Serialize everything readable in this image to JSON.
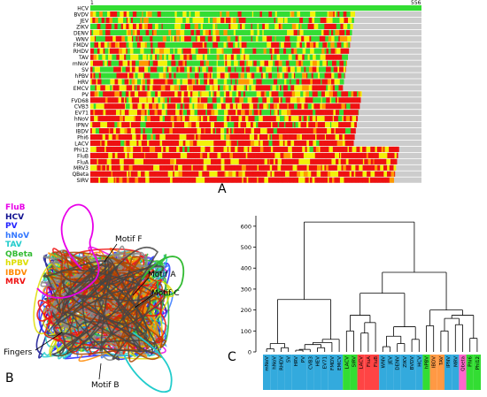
{
  "panelA": {
    "label": "A",
    "start_label": "1",
    "end_label": "556",
    "rows": [
      "HCV",
      "BVDV",
      "JEV",
      "ZIKV",
      "DENV",
      "WNV",
      "FMDV",
      "RHDV",
      "TAV",
      "mNoV",
      "SV",
      "hPBV",
      "HRV",
      "EMCV",
      "PV",
      "FVD68",
      "CVB3",
      "EV71",
      "hNoV",
      "IPNV",
      "IBDV",
      "Phi6",
      "LACV",
      "Phi12",
      "FluB",
      "FluA",
      "MRV3",
      "QBeta",
      "SIRV"
    ],
    "colors": {
      "green": "#33dd33",
      "yellow": "#f2f20a",
      "orange": "#ff9900",
      "red": "#ee1111",
      "gray": "#cccccc"
    }
  },
  "panelB": {
    "label": "B",
    "legend": [
      {
        "name": "FluB",
        "color": "#e800e8"
      },
      {
        "name": "HCV",
        "color": "#101090"
      },
      {
        "name": "PV",
        "color": "#2222ff"
      },
      {
        "name": "hNoV",
        "color": "#3377ff"
      },
      {
        "name": "TAV",
        "color": "#22cccc"
      },
      {
        "name": "QBeta",
        "color": "#33bb33"
      },
      {
        "name": "hPBV",
        "color": "#dddd00"
      },
      {
        "name": "IBDV",
        "color": "#ff8800"
      },
      {
        "name": "MRV",
        "color": "#ee1111"
      }
    ],
    "motifs": {
      "f": "Motif F",
      "a": "Motif A",
      "c": "Motif C",
      "b": "Motif B",
      "fingers": "Fingers"
    }
  },
  "panelC": {
    "label": "C",
    "chart_data": {
      "type": "dendrogram",
      "y_ticks": [
        0,
        100,
        200,
        300,
        400,
        500,
        600
      ],
      "ylim": [
        0,
        650
      ],
      "leaves": [
        {
          "name": "mNoV",
          "group": "blue"
        },
        {
          "name": "hNoV",
          "group": "blue"
        },
        {
          "name": "RHDV",
          "group": "blue"
        },
        {
          "name": "SV",
          "group": "blue"
        },
        {
          "name": "HRV",
          "group": "blue"
        },
        {
          "name": "PV",
          "group": "blue"
        },
        {
          "name": "CVB3",
          "group": "blue"
        },
        {
          "name": "HEV",
          "group": "blue"
        },
        {
          "name": "EV71",
          "group": "blue"
        },
        {
          "name": "FMDV",
          "group": "blue"
        },
        {
          "name": "EMCV",
          "group": "blue"
        },
        {
          "name": "LACV",
          "group": "green"
        },
        {
          "name": "SIRV",
          "group": "green"
        },
        {
          "name": "LACV",
          "group": "red"
        },
        {
          "name": "FluA",
          "group": "red"
        },
        {
          "name": "FluB",
          "group": "red"
        },
        {
          "name": "WNV",
          "group": "blue"
        },
        {
          "name": "JEV",
          "group": "blue"
        },
        {
          "name": "DENV",
          "group": "blue"
        },
        {
          "name": "ZIKV",
          "group": "blue"
        },
        {
          "name": "BVDV",
          "group": "blue"
        },
        {
          "name": "HCV",
          "group": "blue"
        },
        {
          "name": "hPBV",
          "group": "green"
        },
        {
          "name": "IBDV",
          "group": "orange"
        },
        {
          "name": "TAV",
          "group": "orange"
        },
        {
          "name": "IPNV",
          "group": "blue"
        },
        {
          "name": "MRV",
          "group": "blue"
        },
        {
          "name": "Qbeta",
          "group": "pink"
        },
        {
          "name": "Phi6",
          "group": "green"
        },
        {
          "name": "Phi12",
          "group": "green"
        }
      ],
      "group_colors": {
        "blue": "#33aadd",
        "green": "#33dd33",
        "red": "#ff4444",
        "orange": "#ff9944",
        "pink": "#ff66cc"
      }
    }
  }
}
